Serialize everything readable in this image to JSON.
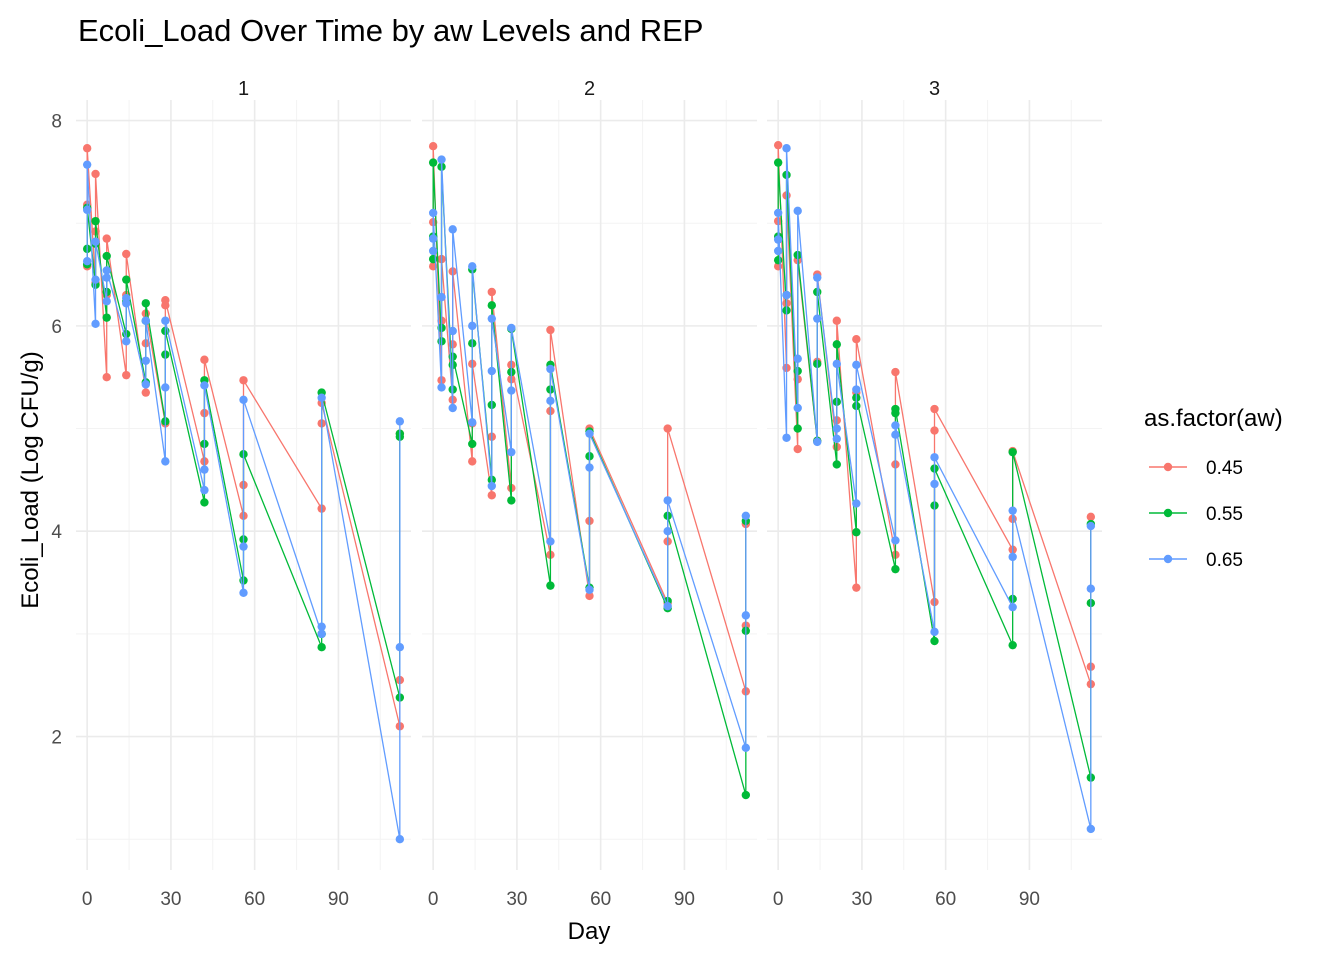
{
  "chart_data": {
    "type": "line",
    "title": "Ecoli_Load Over Time by aw Levels and REP",
    "xlabel": "Day",
    "ylabel": "Ecoli_Load (Log CFU/g)",
    "legend_title": "as.factor(aw)",
    "legend_position": "right",
    "grid": true,
    "xlim": [
      -4,
      116
    ],
    "ylim": [
      0.7,
      8.2
    ],
    "x_ticks": [
      0,
      30,
      60,
      90
    ],
    "y_ticks": [
      2,
      4,
      6,
      8
    ],
    "days": [
      0,
      3,
      7,
      14,
      21,
      28,
      42,
      56,
      84,
      112
    ],
    "series_colors": {
      "0.45": "#F8766D",
      "0.55": "#00BA38",
      "0.65": "#619CFF"
    },
    "panels": [
      {
        "label": "1",
        "series": [
          {
            "name": "0.45",
            "values": [
              [
                7.73,
                7.18,
                6.58
              ],
              [
                7.48,
                6.92,
                6.42
              ],
              [
                6.85,
                5.5,
                6.3
              ],
              [
                6.7,
                6.3,
                5.52
              ],
              [
                6.12,
                5.83,
                5.35
              ],
              [
                6.25,
                6.2,
                5.05
              ],
              [
                5.67,
                5.15,
                4.68
              ],
              [
                5.47,
                4.45,
                4.15
              ],
              [
                5.25,
                4.22,
                5.05
              ],
              [
                2.55,
                2.1,
                4.95
              ]
            ]
          },
          {
            "name": "0.55",
            "values": [
              [
                6.75,
                7.15,
                6.6
              ],
              [
                7.02,
                6.8,
                6.4
              ],
              [
                6.68,
                6.33,
                6.08
              ],
              [
                6.45,
                5.92,
                6.24
              ],
              [
                6.22,
                5.45,
                6.05
              ],
              [
                5.95,
                5.72,
                5.07
              ],
              [
                5.47,
                4.85,
                4.28
              ],
              [
                4.75,
                3.92,
                3.52
              ],
              [
                5.35,
                3.0,
                2.87
              ],
              [
                4.92,
                2.38,
                4.95
              ]
            ]
          },
          {
            "name": "0.65",
            "values": [
              [
                7.57,
                7.13,
                6.63
              ],
              [
                6.45,
                6.82,
                6.02
              ],
              [
                6.54,
                6.47,
                6.24
              ],
              [
                6.22,
                6.27,
                5.85
              ],
              [
                6.05,
                5.66,
                5.43
              ],
              [
                6.05,
                5.4,
                4.68
              ],
              [
                5.42,
                4.6,
                4.4
              ],
              [
                5.28,
                3.85,
                3.4
              ],
              [
                5.3,
                3.07,
                3.0
              ],
              [
                5.07,
                2.87,
                1.0
              ]
            ]
          }
        ]
      },
      {
        "label": "2",
        "series": [
          {
            "name": "0.45",
            "values": [
              [
                7.75,
                7.01,
                6.58
              ],
              [
                6.65,
                5.47,
                6.05
              ],
              [
                6.53,
                5.82,
                5.28
              ],
              [
                5.63,
                4.68,
                5.05
              ],
              [
                6.33,
                4.92,
                4.35
              ],
              [
                5.62,
                5.48,
                4.42
              ],
              [
                5.96,
                5.17,
                3.77
              ],
              [
                5.0,
                4.1,
                3.37
              ],
              [
                5.0,
                3.9,
                3.3
              ],
              [
                4.07,
                3.08,
                2.44
              ]
            ]
          },
          {
            "name": "0.55",
            "values": [
              [
                7.59,
                6.65,
                6.87
              ],
              [
                7.55,
                5.85,
                5.98
              ],
              [
                5.7,
                5.62,
                5.38
              ],
              [
                6.55,
                5.83,
                4.85
              ],
              [
                6.2,
                5.23,
                4.5
              ],
              [
                5.55,
                4.3,
                5.97
              ],
              [
                5.62,
                5.38,
                3.47
              ],
              [
                4.97,
                4.73,
                3.45
              ],
              [
                4.15,
                3.32,
                3.25
              ],
              [
                4.1,
                3.03,
                1.43
              ]
            ]
          },
          {
            "name": "0.65",
            "values": [
              [
                7.1,
                6.85,
                6.73
              ],
              [
                7.62,
                6.28,
                5.4
              ],
              [
                6.94,
                5.95,
                5.2
              ],
              [
                6.58,
                6.0,
                5.06
              ],
              [
                6.07,
                5.56,
                4.44
              ],
              [
                5.98,
                5.37,
                4.77
              ],
              [
                5.58,
                5.27,
                3.9
              ],
              [
                4.95,
                4.62,
                3.43
              ],
              [
                4.3,
                4.0,
                3.27
              ],
              [
                4.15,
                3.18,
                1.89
              ]
            ]
          }
        ]
      },
      {
        "label": "3",
        "series": [
          {
            "name": "0.45",
            "values": [
              [
                7.76,
                7.02,
                6.58
              ],
              [
                7.27,
                6.22,
                5.59
              ],
              [
                6.64,
                5.48,
                4.8
              ],
              [
                6.5,
                5.65,
                4.88
              ],
              [
                6.05,
                5.08,
                4.82
              ],
              [
                5.87,
                5.35,
                3.45
              ],
              [
                5.55,
                4.65,
                3.77
              ],
              [
                5.19,
                4.98,
                3.31
              ],
              [
                4.78,
                4.12,
                3.82
              ],
              [
                4.14,
                2.68,
                2.51
              ]
            ]
          },
          {
            "name": "0.55",
            "values": [
              [
                7.59,
                6.64,
                6.87
              ],
              [
                7.47,
                6.15,
                6.3
              ],
              [
                6.69,
                5.56,
                5.0
              ],
              [
                6.33,
                5.63,
                4.88
              ],
              [
                5.82,
                5.26,
                4.65
              ],
              [
                5.3,
                5.22,
                3.99
              ],
              [
                5.19,
                5.15,
                3.63
              ],
              [
                4.61,
                4.25,
                2.93
              ],
              [
                4.77,
                3.34,
                2.89
              ],
              [
                3.3,
                1.6,
                4.07
              ]
            ]
          },
          {
            "name": "0.65",
            "values": [
              [
                7.1,
                6.84,
                6.73
              ],
              [
                7.73,
                6.3,
                4.91
              ],
              [
                7.12,
                5.68,
                5.2
              ],
              [
                6.47,
                6.07,
                4.87
              ],
              [
                5.63,
                5.0,
                4.9
              ],
              [
                5.62,
                5.38,
                4.27
              ],
              [
                5.03,
                4.94,
                3.91
              ],
              [
                4.72,
                4.46,
                3.02
              ],
              [
                4.2,
                3.75,
                3.26
              ],
              [
                4.05,
                3.44,
                1.1
              ]
            ]
          }
        ]
      }
    ]
  }
}
